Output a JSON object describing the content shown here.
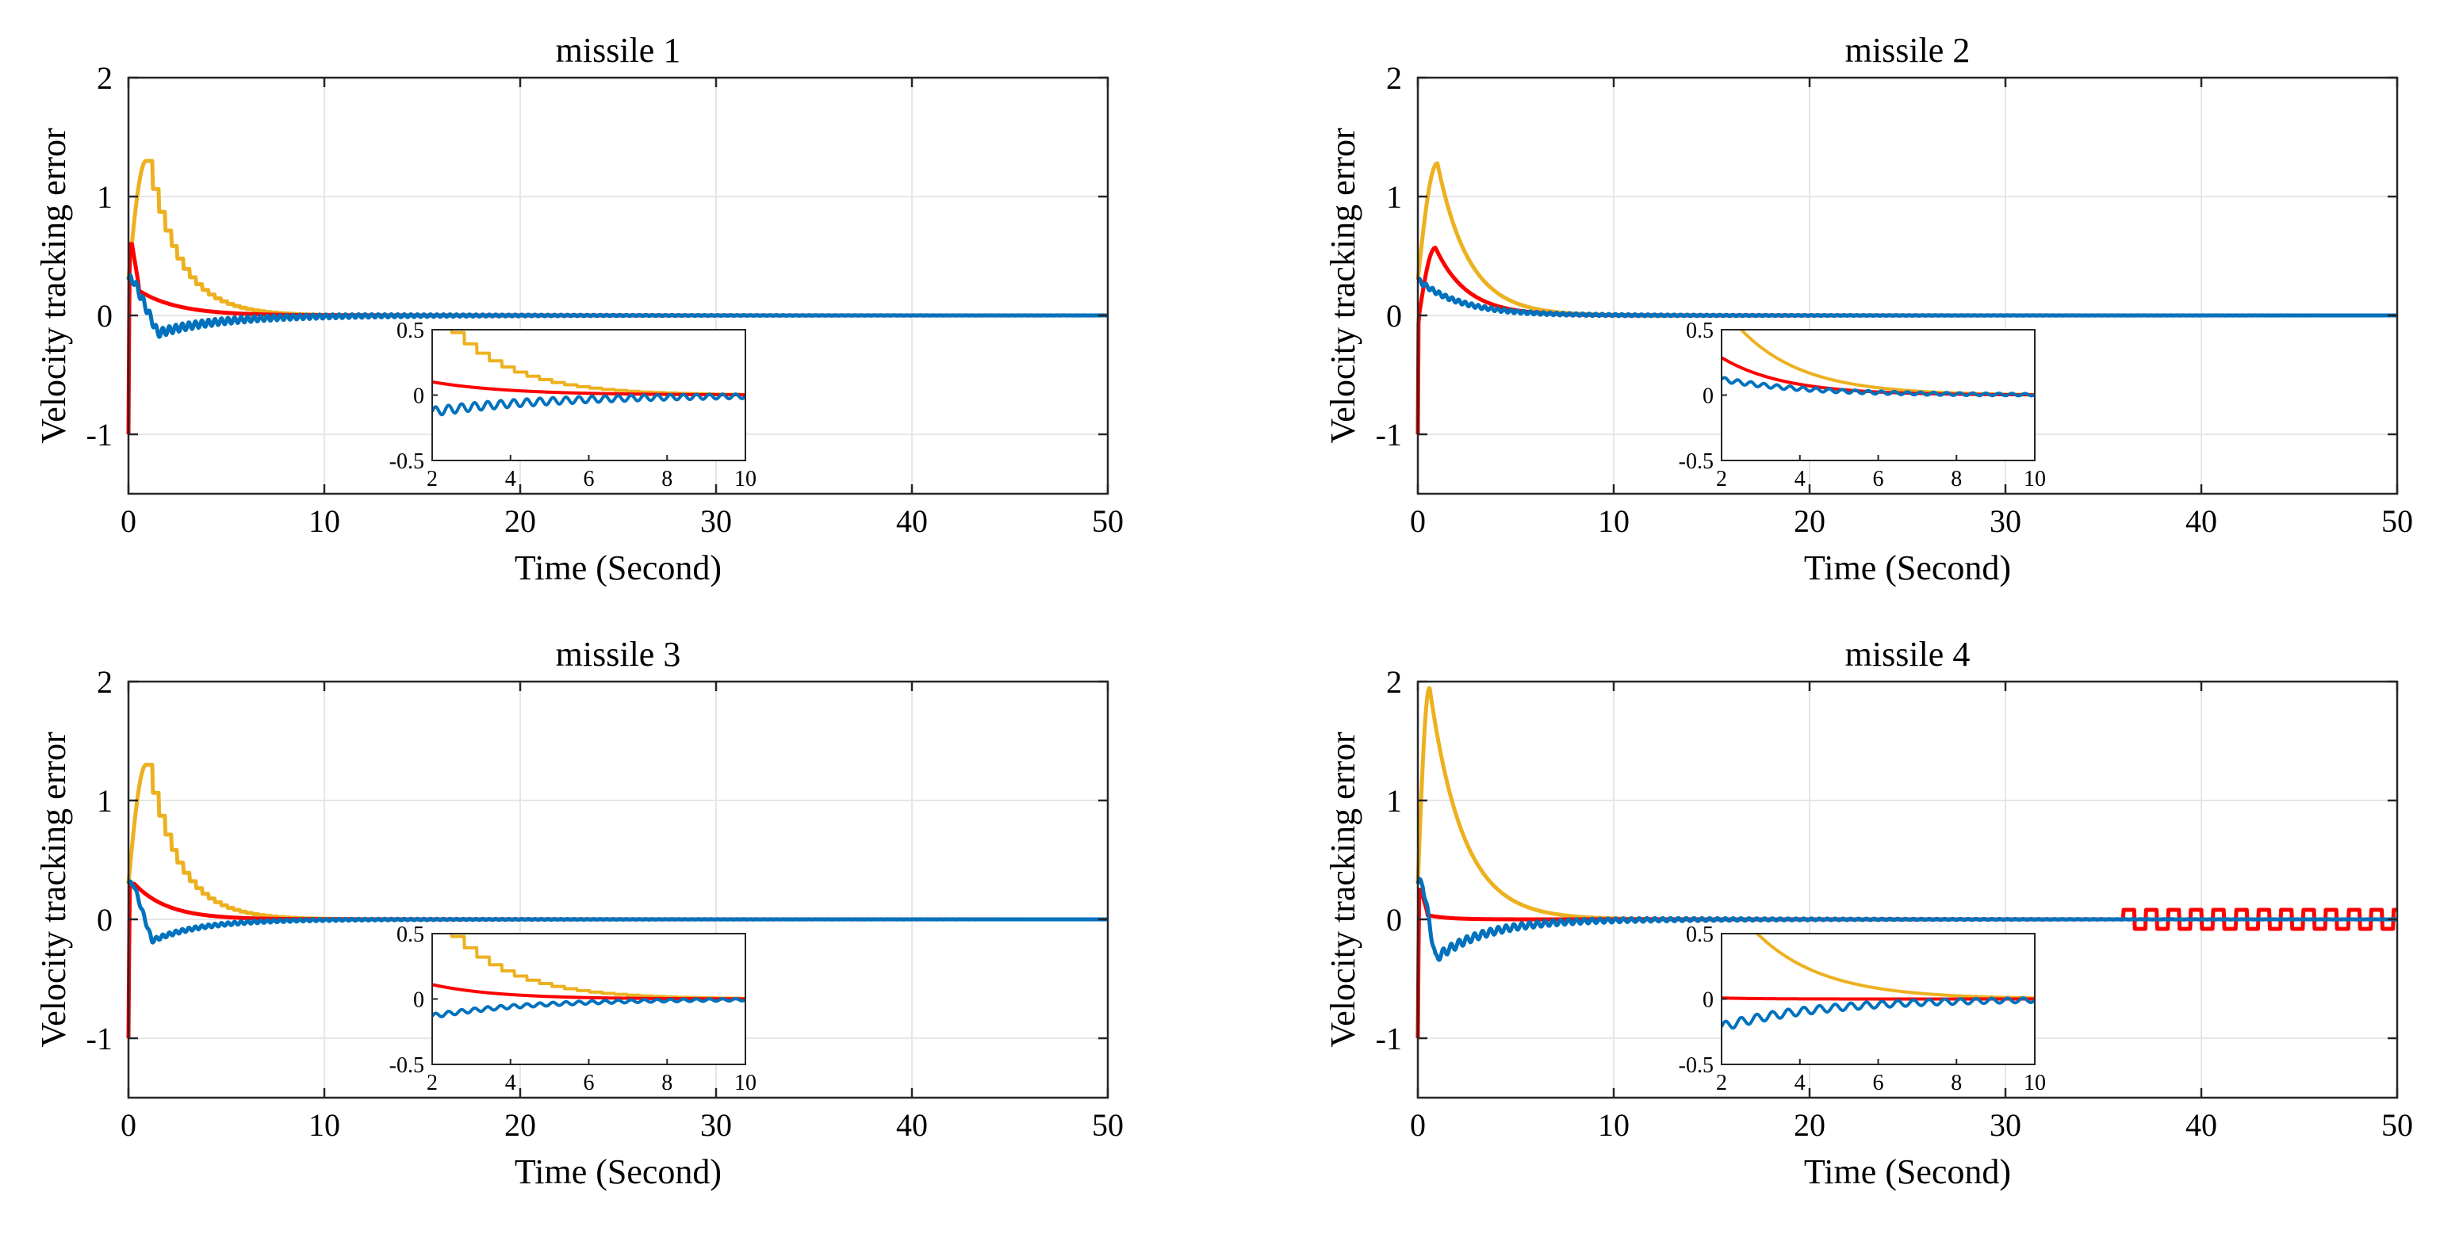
{
  "chart_data": [
    {
      "type": "line",
      "title": "missile 1",
      "xlabel": "Time (Second)",
      "ylabel": "Velocity tracking error",
      "xlim": [
        0,
        50
      ],
      "ylim": [
        -1.5,
        2
      ],
      "xticks": [
        0,
        10,
        20,
        30,
        40,
        50
      ],
      "yticks": [
        -1,
        0,
        1,
        2
      ],
      "grid": true,
      "series": [
        {
          "color": "#EDB120",
          "shape": "overshoot",
          "params": {
            "start": 0.3,
            "peak": 1.3,
            "tpk": 0.9,
            "tau": 1.6,
            "osc": 0.0,
            "fosc": 2.0,
            "step": 0.32
          }
        },
        {
          "color": "#FF0000",
          "shape": "spike",
          "params": {
            "start": -1.0,
            "spike": 0.6,
            "tspk": 0.18,
            "base": 0.25,
            "tau": 2.0,
            "osc": 0.0,
            "fosc": 2.0,
            "sq_from": 0,
            "sq_amp": 0
          }
        },
        {
          "color": "#0072BD",
          "shape": "dip",
          "params": {
            "start": 0.3,
            "dip": -0.15,
            "tdip": 1.5,
            "tau": 3.0,
            "osc": 0.04,
            "fosc": 3.0
          }
        }
      ],
      "inset": {
        "xlim": [
          2,
          10
        ],
        "ylim": [
          -0.5,
          0.5
        ],
        "xticks": [
          2,
          4,
          6,
          8,
          10
        ],
        "yticks": [
          -0.5,
          0,
          0.5
        ]
      }
    },
    {
      "type": "line",
      "title": "missile 2",
      "xlabel": "Time (Second)",
      "ylabel": "Velocity tracking error",
      "xlim": [
        0,
        50
      ],
      "ylim": [
        -1.5,
        2
      ],
      "xticks": [
        0,
        10,
        20,
        30,
        40,
        50
      ],
      "yticks": [
        -1,
        0,
        1,
        2
      ],
      "grid": true,
      "series": [
        {
          "color": "#EDB120",
          "shape": "overshoot",
          "params": {
            "start": 0.3,
            "peak": 1.28,
            "tpk": 1.0,
            "tau": 1.6,
            "osc": 0.0,
            "fosc": 2.0,
            "step": 0.0
          }
        },
        {
          "color": "#FF0000",
          "shape": "spike",
          "params": {
            "start": -1.0,
            "spike": 0.57,
            "tspk": 0.9,
            "base": 0.57,
            "tau": 1.6,
            "osc": 0.0,
            "fosc": 2.0,
            "sq_from": 0,
            "sq_amp": 0
          }
        },
        {
          "color": "#0072BD",
          "shape": "decay",
          "params": {
            "start": 0.3,
            "tau": 2.2,
            "osc": 0.02,
            "fosc": 3.0
          }
        }
      ],
      "inset": {
        "xlim": [
          2,
          10
        ],
        "ylim": [
          -0.5,
          0.5
        ],
        "xticks": [
          2,
          4,
          6,
          8,
          10
        ],
        "yticks": [
          -0.5,
          0,
          0.5
        ]
      }
    },
    {
      "type": "line",
      "title": "missile 3",
      "xlabel": "Time (Second)",
      "ylabel": "Velocity tracking error",
      "xlim": [
        0,
        50
      ],
      "ylim": [
        -1.5,
        2
      ],
      "xticks": [
        0,
        10,
        20,
        30,
        40,
        50
      ],
      "yticks": [
        -1,
        0,
        1,
        2
      ],
      "grid": true,
      "series": [
        {
          "color": "#EDB120",
          "shape": "overshoot",
          "params": {
            "start": 0.3,
            "peak": 1.3,
            "tpk": 0.9,
            "tau": 1.6,
            "osc": 0.0,
            "fosc": 2.0,
            "step": 0.32
          }
        },
        {
          "color": "#FF0000",
          "shape": "spike",
          "params": {
            "start": -1.0,
            "spike": 0.3,
            "tspk": 0.3,
            "base": 0.3,
            "tau": 1.7,
            "osc": 0.0,
            "fosc": 2.0,
            "sq_from": 0,
            "sq_amp": 0
          }
        },
        {
          "color": "#0072BD",
          "shape": "dip",
          "params": {
            "start": 0.3,
            "dip": -0.18,
            "tdip": 1.2,
            "tau": 2.5,
            "osc": 0.02,
            "fosc": 3.0
          }
        }
      ],
      "inset": {
        "xlim": [
          2,
          10
        ],
        "ylim": [
          -0.5,
          0.5
        ],
        "xticks": [
          2,
          4,
          6,
          8,
          10
        ],
        "yticks": [
          -0.5,
          0,
          0.5
        ]
      }
    },
    {
      "type": "line",
      "title": "missile 4",
      "xlabel": "Time (Second)",
      "ylabel": "Velocity tracking error",
      "xlim": [
        0,
        50
      ],
      "ylim": [
        -1.5,
        2
      ],
      "xticks": [
        0,
        10,
        20,
        30,
        40,
        50
      ],
      "yticks": [
        -1,
        0,
        1,
        2
      ],
      "grid": true,
      "series": [
        {
          "color": "#EDB120",
          "shape": "overshoot",
          "params": {
            "start": 0.3,
            "peak": 1.95,
            "tpk": 0.6,
            "tau": 1.7,
            "osc": 0.0,
            "fosc": 2.0,
            "step": 0.0
          }
        },
        {
          "color": "#FF0000",
          "shape": "spike",
          "params": {
            "start": -1.0,
            "spike": 0.25,
            "tspk": 0.15,
            "base": 0.05,
            "tau": 1.0,
            "osc": 0.0,
            "fosc": 2.0,
            "sq_from": 36,
            "sq_amp": 0.08
          }
        },
        {
          "color": "#0072BD",
          "shape": "dip",
          "params": {
            "start": 0.3,
            "dip": -0.33,
            "tdip": 0.9,
            "tau": 2.5,
            "osc": 0.04,
            "fosc": 2.5
          }
        }
      ],
      "inset": {
        "xlim": [
          2,
          10
        ],
        "ylim": [
          -0.5,
          0.5
        ],
        "xticks": [
          2,
          4,
          6,
          8,
          10
        ],
        "yticks": [
          -0.5,
          0,
          0.5
        ]
      }
    }
  ]
}
